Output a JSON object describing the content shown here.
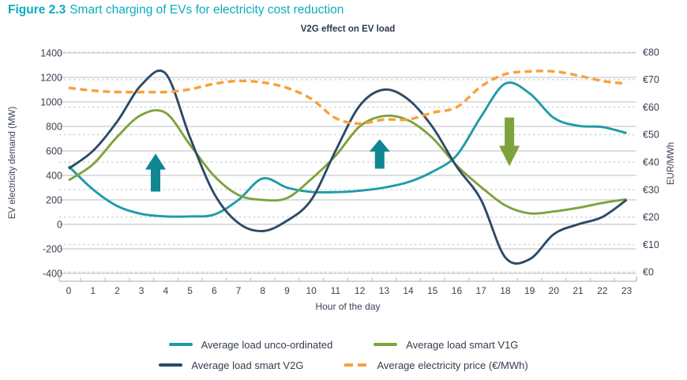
{
  "figure": {
    "label": "Figure 2.3",
    "caption": "Smart charging of EVs for electricity cost reduction",
    "caption_color": "#0BACC0"
  },
  "chart_data": {
    "type": "line",
    "title": "V2G effect on EV load",
    "xlabel": "Hour of the day",
    "ylabel_left": "EV electricity demand (MW)",
    "ylabel_right": "EUR/MWh",
    "x": [
      0,
      1,
      2,
      3,
      4,
      5,
      6,
      7,
      8,
      9,
      10,
      11,
      12,
      13,
      14,
      15,
      16,
      17,
      18,
      19,
      20,
      21,
      22,
      23
    ],
    "left_axis": {
      "min": -400,
      "max": 1400,
      "ticks": [
        1400,
        1200,
        1000,
        800,
        600,
        400,
        200,
        0,
        -200,
        -400
      ],
      "grid": "solid"
    },
    "right_axis": {
      "min": 0,
      "max": 80,
      "ticks": [
        80,
        70,
        60,
        50,
        40,
        30,
        20,
        10,
        0
      ],
      "tick_prefix": "€",
      "grid": "dashed"
    },
    "colors": {
      "grid_solid": "#C8CBCF",
      "grid_dashed": "#D5D7DA",
      "axis_line": "#B9BDC2",
      "tick_label": "#39424F",
      "arrow_teal": "#108693",
      "arrow_green": "#7DA33C"
    },
    "series": [
      {
        "name": "Average load unco-ordinated",
        "axis": "left",
        "style": "solid",
        "color": "#1E9BA9",
        "values": [
          475,
          285,
          150,
          85,
          65,
          65,
          80,
          200,
          375,
          300,
          265,
          263,
          275,
          300,
          345,
          430,
          565,
          880,
          1150,
          1070,
          870,
          805,
          795,
          745
        ]
      },
      {
        "name": "Average load smart V1G",
        "axis": "left",
        "style": "solid",
        "color": "#7DA33C",
        "values": [
          360,
          490,
          715,
          895,
          910,
          650,
          395,
          240,
          200,
          215,
          370,
          560,
          800,
          885,
          850,
          705,
          480,
          305,
          155,
          90,
          105,
          135,
          175,
          205
        ]
      },
      {
        "name": "Average load smart V2G",
        "axis": "left",
        "style": "solid",
        "color": "#2E4A66",
        "values": [
          455,
          600,
          840,
          1140,
          1230,
          710,
          250,
          10,
          -55,
          30,
          200,
          600,
          970,
          1100,
          1020,
          795,
          470,
          200,
          -270,
          -285,
          -80,
          0,
          60,
          200
        ]
      },
      {
        "name": "Average electricity price (€/MWh)",
        "axis": "right",
        "style": "dashed",
        "color": "#F9A03B",
        "values": [
          67,
          66,
          65.5,
          65.5,
          65.5,
          66.5,
          68.5,
          69.5,
          69,
          67,
          63,
          56,
          54,
          55.5,
          55.5,
          58,
          60,
          67.5,
          72,
          73,
          73,
          71.5,
          69.5,
          68.5
        ]
      }
    ],
    "annotations": [
      {
        "shape": "arrow",
        "direction": "up",
        "color": "#108693",
        "x": 3.58,
        "y_from": 268,
        "y_to": 578
      },
      {
        "shape": "arrow",
        "direction": "up",
        "color": "#108693",
        "x": 12.82,
        "y_from": 455,
        "y_to": 695
      },
      {
        "shape": "arrow",
        "direction": "down",
        "color": "#7DA33C",
        "x": 18.17,
        "y_from": 872,
        "y_to": 475
      }
    ],
    "legend": {
      "rows": [
        [
          0,
          1
        ],
        [
          2,
          3
        ]
      ]
    }
  }
}
